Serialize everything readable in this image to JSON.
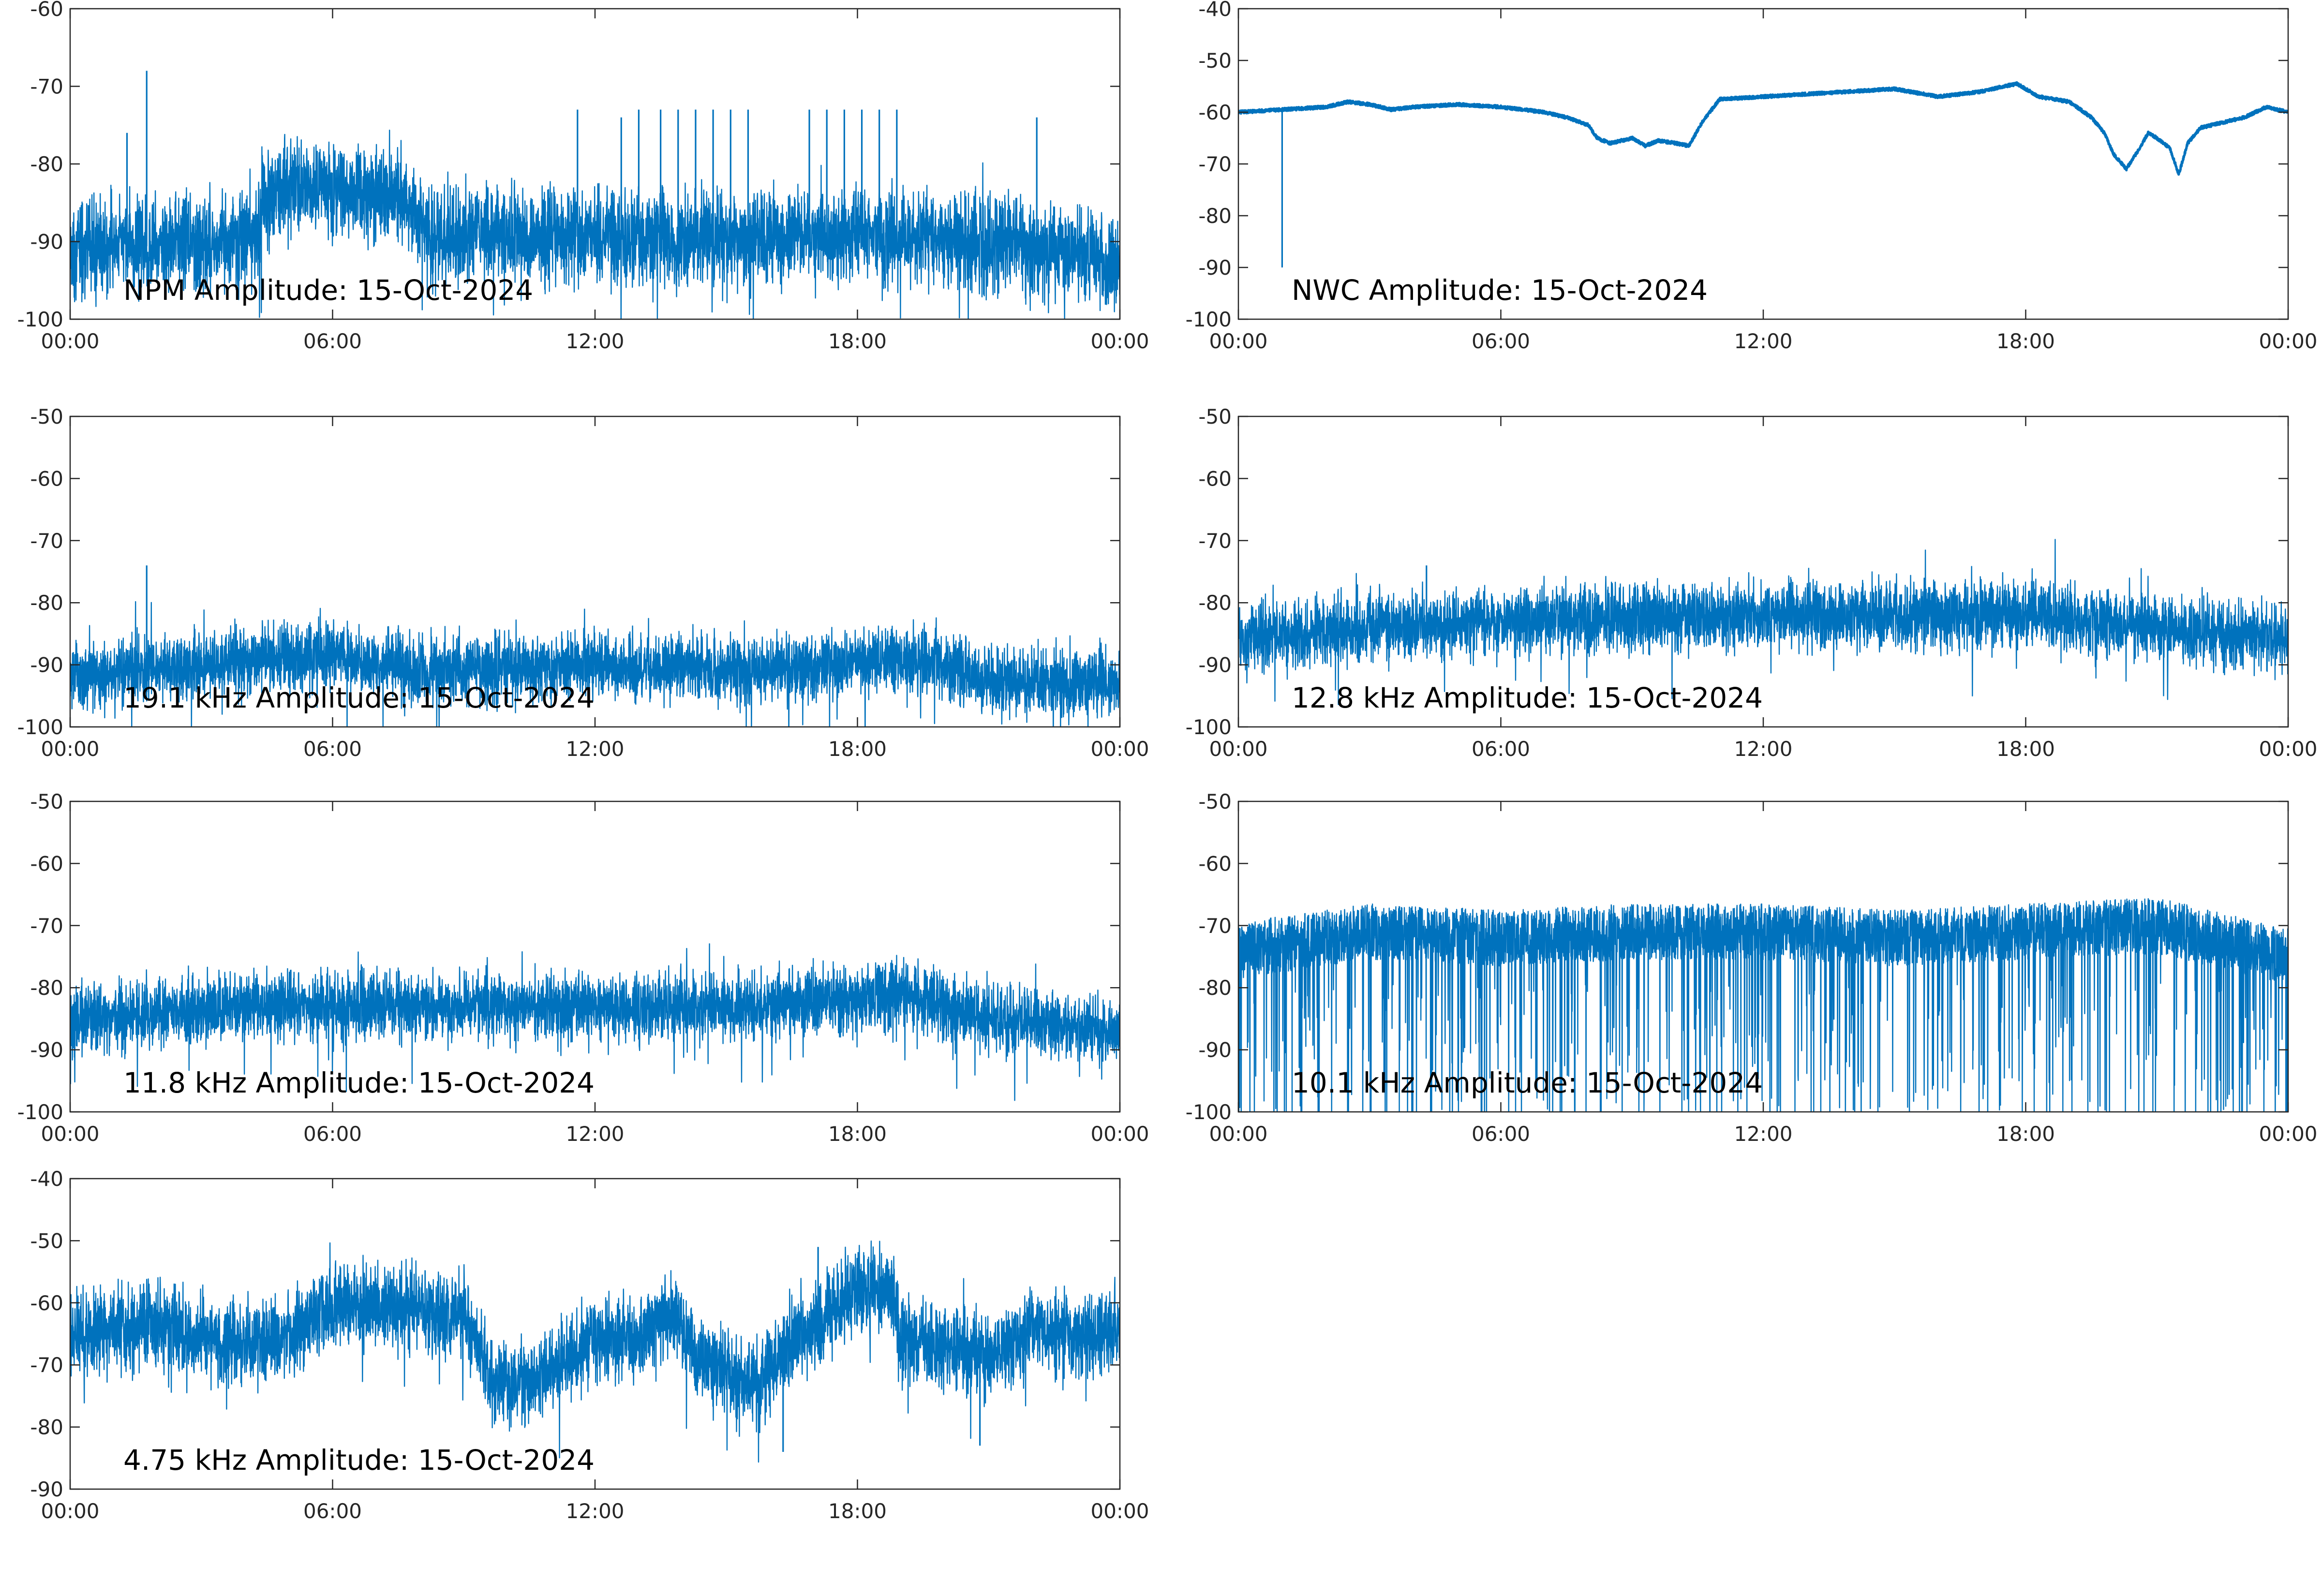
{
  "figure": {
    "line_color": "#0072bd",
    "axis_color": "#262626",
    "background": "#ffffff"
  },
  "chart_data": [
    {
      "type": "line",
      "label": "NPM Amplitude: 15-Oct-2024",
      "x_unit": "hours",
      "xlim": [
        0,
        24
      ],
      "ylim": [
        -100,
        -60
      ],
      "xticks": [
        0,
        6,
        12,
        18,
        24
      ],
      "xtick_labels": [
        "00:00",
        "06:00",
        "12:00",
        "18:00",
        "00:00"
      ],
      "yticks": [
        -100,
        -90,
        -80,
        -70,
        -60
      ],
      "grid": false,
      "series": [
        {
          "style": "noise",
          "band": 4.5,
          "x": [
            0,
            4.3,
            4.4,
            5.5,
            7.5,
            8.2,
            10,
            14,
            18,
            22,
            24
          ],
          "y": [
            -91,
            -90,
            -84,
            -83,
            -84,
            -89,
            -89,
            -90,
            -89,
            -91,
            -93
          ]
        }
      ],
      "spikes": [
        {
          "x": 1.3,
          "y": -76
        },
        {
          "x": 1.75,
          "y": -68
        },
        {
          "x": 11.6,
          "y": -73
        },
        {
          "x": 12.6,
          "y": -74
        },
        {
          "x": 13.0,
          "y": -73
        },
        {
          "x": 13.5,
          "y": -73
        },
        {
          "x": 13.9,
          "y": -73
        },
        {
          "x": 14.3,
          "y": -73
        },
        {
          "x": 14.7,
          "y": -73
        },
        {
          "x": 15.1,
          "y": -73
        },
        {
          "x": 15.5,
          "y": -73
        },
        {
          "x": 16.9,
          "y": -73
        },
        {
          "x": 17.3,
          "y": -73
        },
        {
          "x": 17.7,
          "y": -73
        },
        {
          "x": 18.1,
          "y": -73
        },
        {
          "x": 18.5,
          "y": -73
        },
        {
          "x": 18.9,
          "y": -73
        },
        {
          "x": 22.1,
          "y": -74
        }
      ]
    },
    {
      "type": "line",
      "label": "NWC Amplitude: 15-Oct-2024",
      "x_unit": "hours",
      "xlim": [
        0,
        24
      ],
      "ylim": [
        -100,
        -40
      ],
      "xticks": [
        0,
        6,
        12,
        18,
        24
      ],
      "xtick_labels": [
        "00:00",
        "06:00",
        "12:00",
        "18:00",
        "00:00"
      ],
      "yticks": [
        -100,
        -90,
        -80,
        -70,
        -60,
        -50,
        -40
      ],
      "grid": false,
      "series": [
        {
          "style": "smooth",
          "band": 0.6,
          "x": [
            0,
            1,
            2,
            2.5,
            3,
            3.5,
            4,
            5,
            6,
            6.5,
            7,
            7.5,
            8,
            8.2,
            8.5,
            9,
            9.3,
            9.6,
            10,
            10.3,
            10.6,
            11,
            12,
            13,
            14,
            15,
            16,
            16.5,
            17,
            17.5,
            17.8,
            18.3,
            19,
            19.5,
            19.8,
            20,
            20.3,
            20.6,
            20.8,
            21,
            21.3,
            21.5,
            21.7,
            22,
            22.5,
            23,
            23.5,
            24
          ],
          "y": [
            -60,
            -59.5,
            -59,
            -58,
            -58.5,
            -59.5,
            -59,
            -58.5,
            -59,
            -59.5,
            -60,
            -61,
            -62.5,
            -65,
            -66,
            -65,
            -66.5,
            -65.5,
            -66,
            -66.5,
            -62,
            -57.5,
            -57,
            -56.5,
            -56,
            -55.5,
            -57,
            -56.5,
            -56,
            -55,
            -54.5,
            -57,
            -58,
            -61,
            -64,
            -68,
            -71,
            -67,
            -64,
            -65,
            -67,
            -72,
            -66,
            -63,
            -62,
            -61,
            -59,
            -60
          ]
        }
      ],
      "spikes": [
        {
          "x": 1.0,
          "y": -90
        }
      ]
    },
    {
      "type": "line",
      "label": "19.1 kHz Amplitude: 15-Oct-2024",
      "x_unit": "hours",
      "xlim": [
        0,
        24
      ],
      "ylim": [
        -100,
        -50
      ],
      "xticks": [
        0,
        6,
        12,
        18,
        24
      ],
      "xtick_labels": [
        "00:00",
        "06:00",
        "12:00",
        "18:00",
        "00:00"
      ],
      "yticks": [
        -100,
        -90,
        -80,
        -70,
        -60,
        -50
      ],
      "grid": false,
      "series": [
        {
          "style": "noise",
          "band": 4,
          "x": [
            0,
            3,
            6,
            8,
            12,
            16,
            19,
            20,
            21,
            24
          ],
          "y": [
            -92,
            -90,
            -88,
            -91,
            -90,
            -91,
            -89,
            -90,
            -93,
            -93
          ]
        }
      ],
      "spikes": [
        {
          "x": 1.75,
          "y": -74
        }
      ]
    },
    {
      "type": "line",
      "label": "12.8 kHz Amplitude: 15-Oct-2024",
      "x_unit": "hours",
      "xlim": [
        0,
        24
      ],
      "ylim": [
        -100,
        -50
      ],
      "xticks": [
        0,
        6,
        12,
        18,
        24
      ],
      "xtick_labels": [
        "00:00",
        "06:00",
        "12:00",
        "18:00",
        "00:00"
      ],
      "yticks": [
        -100,
        -90,
        -80,
        -70,
        -60,
        -50
      ],
      "grid": false,
      "series": [
        {
          "style": "noise",
          "band": 4,
          "x": [
            0,
            3,
            6,
            12,
            18,
            21,
            24
          ],
          "y": [
            -86,
            -84,
            -83,
            -82,
            -82,
            -84,
            -86
          ]
        }
      ],
      "spikes": [
        {
          "x": 4.3,
          "y": -74
        }
      ]
    },
    {
      "type": "line",
      "label": "11.8 kHz Amplitude: 15-Oct-2024",
      "x_unit": "hours",
      "xlim": [
        0,
        24
      ],
      "ylim": [
        -100,
        -50
      ],
      "xticks": [
        0,
        6,
        12,
        18,
        24
      ],
      "xtick_labels": [
        "00:00",
        "06:00",
        "12:00",
        "18:00",
        "00:00"
      ],
      "yticks": [
        -100,
        -90,
        -80,
        -70,
        -60,
        -50
      ],
      "grid": false,
      "series": [
        {
          "style": "noise",
          "band": 4,
          "x": [
            0,
            4,
            8,
            12,
            16,
            19,
            21,
            24
          ],
          "y": [
            -85,
            -83,
            -83,
            -83,
            -83,
            -81,
            -85,
            -87
          ]
        }
      ],
      "spikes": []
    },
    {
      "type": "line",
      "label": "10.1 kHz Amplitude: 15-Oct-2024",
      "x_unit": "hours",
      "xlim": [
        0,
        24
      ],
      "ylim": [
        -100,
        -50
      ],
      "xticks": [
        0,
        6,
        12,
        18,
        24
      ],
      "xtick_labels": [
        "00:00",
        "06:00",
        "12:00",
        "18:00",
        "00:00"
      ],
      "yticks": [
        -100,
        -90,
        -80,
        -70,
        -60,
        -50
      ],
      "grid": false,
      "series": [
        {
          "style": "spiky",
          "band": 5,
          "x": [
            0,
            3,
            6,
            9,
            12,
            15,
            18,
            21,
            24
          ],
          "y": [
            -74,
            -71,
            -72,
            -71,
            -71,
            -72,
            -71,
            -70,
            -75
          ]
        }
      ],
      "spikes": []
    },
    {
      "type": "line",
      "label": "4.75 kHz Amplitude: 15-Oct-2024",
      "x_unit": "hours",
      "xlim": [
        0,
        24
      ],
      "ylim": [
        -90,
        -40
      ],
      "xticks": [
        0,
        6,
        12,
        18,
        24
      ],
      "xtick_labels": [
        "00:00",
        "06:00",
        "12:00",
        "18:00",
        "00:00"
      ],
      "yticks": [
        -90,
        -80,
        -70,
        -60,
        -50,
        -40
      ],
      "grid": false,
      "series": [
        {
          "style": "noise",
          "band": 5,
          "x": [
            0,
            2,
            4,
            5,
            6,
            8,
            9,
            9.7,
            10.5,
            12,
            13,
            13.8,
            14.3,
            15,
            15.8,
            16.5,
            17,
            18,
            18.8,
            19,
            20,
            21,
            22,
            23,
            24
          ],
          "y": [
            -65,
            -64,
            -67,
            -65,
            -60,
            -61,
            -62,
            -73,
            -73,
            -66,
            -66,
            -61,
            -69,
            -72,
            -73,
            -66,
            -64,
            -58,
            -58,
            -66,
            -67,
            -69,
            -64,
            -66,
            -64
          ]
        }
      ],
      "spikes": [
        {
          "x": 16.3,
          "y": -84
        },
        {
          "x": 17.1,
          "y": -51
        },
        {
          "x": 20.8,
          "y": -83
        }
      ]
    }
  ]
}
